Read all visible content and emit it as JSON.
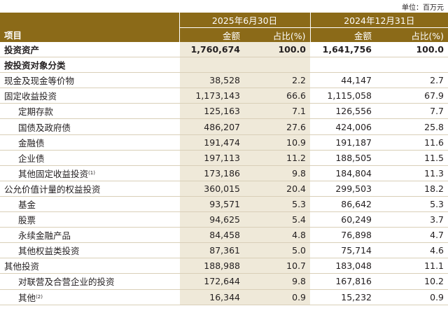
{
  "unit_note": "单位：百万元",
  "header": {
    "item_label": "项目",
    "periods": [
      {
        "label": "2025年6月30日",
        "amount_label": "金额",
        "ratio_label": "占比(%)"
      },
      {
        "label": "2024年12月31日",
        "amount_label": "金额",
        "ratio_label": "占比(%)"
      }
    ]
  },
  "rows": [
    {
      "label": "投资资产",
      "sup": "",
      "level": 1,
      "bold": true,
      "a": "1,760,674",
      "pa": "100.0",
      "b": "1,641,756",
      "pb": "100.0"
    },
    {
      "label": "按投资对象分类",
      "sup": "",
      "level": 1,
      "bold": true,
      "a": "",
      "pa": "",
      "b": "",
      "pb": ""
    },
    {
      "label": "现金及现金等价物",
      "sup": "",
      "level": 1,
      "bold": false,
      "a": "38,528",
      "pa": "2.2",
      "b": "44,147",
      "pb": "2.7"
    },
    {
      "label": "固定收益投资",
      "sup": "",
      "level": 1,
      "bold": false,
      "a": "1,173,143",
      "pa": "66.6",
      "b": "1,115,058",
      "pb": "67.9"
    },
    {
      "label": "定期存款",
      "sup": "",
      "level": 2,
      "bold": false,
      "a": "125,163",
      "pa": "7.1",
      "b": "126,556",
      "pb": "7.7"
    },
    {
      "label": "国债及政府债",
      "sup": "",
      "level": 2,
      "bold": false,
      "a": "486,207",
      "pa": "27.6",
      "b": "424,006",
      "pb": "25.8"
    },
    {
      "label": "金融债",
      "sup": "",
      "level": 2,
      "bold": false,
      "a": "191,474",
      "pa": "10.9",
      "b": "191,187",
      "pb": "11.6"
    },
    {
      "label": "企业债",
      "sup": "",
      "level": 2,
      "bold": false,
      "a": "197,113",
      "pa": "11.2",
      "b": "188,505",
      "pb": "11.5"
    },
    {
      "label": "其他固定收益投资",
      "sup": "(1)",
      "level": 2,
      "bold": false,
      "a": "173,186",
      "pa": "9.8",
      "b": "184,804",
      "pb": "11.3"
    },
    {
      "label": "公允价值计量的权益投资",
      "sup": "",
      "level": 1,
      "bold": false,
      "a": "360,015",
      "pa": "20.4",
      "b": "299,503",
      "pb": "18.2"
    },
    {
      "label": "基金",
      "sup": "",
      "level": 2,
      "bold": false,
      "a": "93,571",
      "pa": "5.3",
      "b": "86,642",
      "pb": "5.3"
    },
    {
      "label": "股票",
      "sup": "",
      "level": 2,
      "bold": false,
      "a": "94,625",
      "pa": "5.4",
      "b": "60,249",
      "pb": "3.7"
    },
    {
      "label": "永续金融产品",
      "sup": "",
      "level": 2,
      "bold": false,
      "a": "84,458",
      "pa": "4.8",
      "b": "76,898",
      "pb": "4.7"
    },
    {
      "label": "其他权益类投资",
      "sup": "",
      "level": 2,
      "bold": false,
      "a": "87,361",
      "pa": "5.0",
      "b": "75,714",
      "pb": "4.6"
    },
    {
      "label": "其他投资",
      "sup": "",
      "level": 1,
      "bold": false,
      "a": "188,988",
      "pa": "10.7",
      "b": "183,048",
      "pb": "11.1"
    },
    {
      "label": "对联营及合营企业的投资",
      "sup": "",
      "level": 2,
      "bold": false,
      "a": "172,644",
      "pa": "9.8",
      "b": "167,816",
      "pb": "10.2"
    },
    {
      "label": "其他",
      "sup": "(2)",
      "level": 2,
      "bold": false,
      "a": "16,344",
      "pa": "0.9",
      "b": "15,232",
      "pb": "0.9"
    }
  ],
  "colors": {
    "header_bg": "#8b6a18",
    "highlight_bg": "#efe9d9",
    "row_rule": "#d9cfb8"
  }
}
